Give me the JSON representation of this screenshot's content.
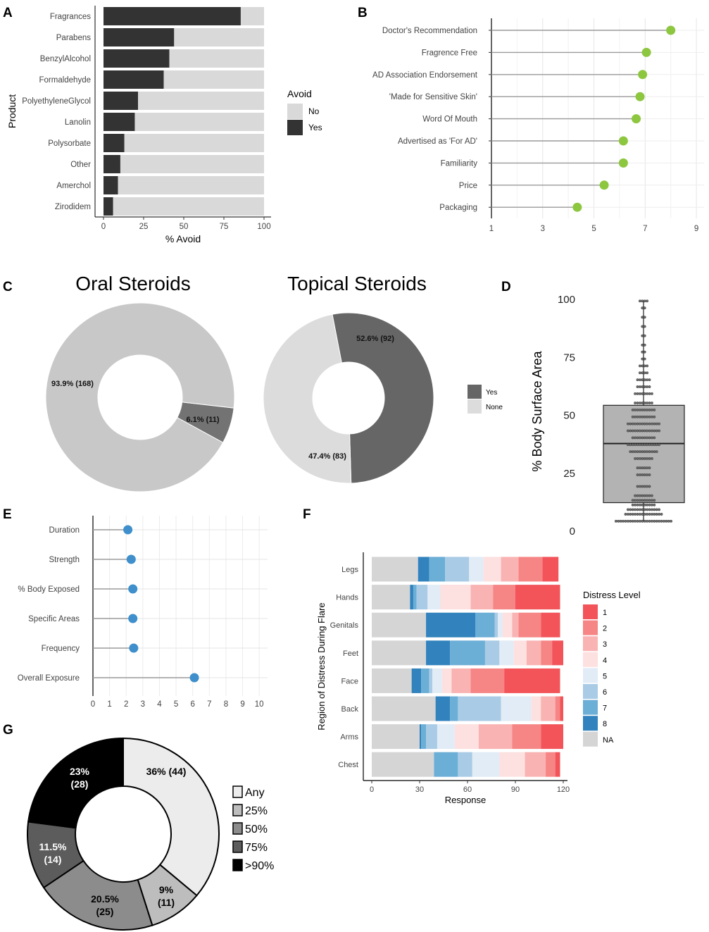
{
  "panel_letters": [
    "A",
    "B",
    "C",
    "D",
    "E",
    "F",
    "G"
  ],
  "chart_data": [
    {
      "panel": "A",
      "type": "bar",
      "orientation": "horizontal",
      "stacked": true,
      "categories": [
        "Fragrances",
        "Parabens",
        "BenzylAlcohol",
        "Formaldehyde",
        "PolyethyleneGlycol",
        "Lanolin",
        "Polysorbate",
        "Other",
        "Amerchol",
        "Zirodidem"
      ],
      "series": [
        {
          "name": "Yes",
          "values": [
            85.5,
            44,
            41,
            37.5,
            21.5,
            19.5,
            13,
            10.5,
            9,
            6
          ],
          "color": "#333333"
        },
        {
          "name": "No",
          "values": [
            14.5,
            56,
            59,
            62.5,
            78.5,
            80.5,
            87,
            89.5,
            91,
            94
          ],
          "color": "#d9d9d9"
        }
      ],
      "xlabel": "% Avoid",
      "ylabel": "Product",
      "xlim": [
        0,
        100
      ],
      "xticks": [
        "0",
        "25",
        "50",
        "75",
        "100"
      ],
      "legend": {
        "title": "Avoid",
        "entries": [
          "No",
          "Yes"
        ],
        "position": "right"
      }
    },
    {
      "panel": "B",
      "type": "lollipop",
      "categories": [
        "Doctor's Recommendation",
        "Fragrence Free",
        "AD Association Endorsement",
        "'Made for Sensitive Skin'",
        "Word Of Mouth",
        "Advertised as 'For AD'",
        "Familiarity",
        "Price",
        "Packaging"
      ],
      "values": [
        8.0,
        7.05,
        6.9,
        6.8,
        6.65,
        6.15,
        6.15,
        5.4,
        4.35
      ],
      "xlim": [
        1,
        9.3
      ],
      "xticks": [
        "1",
        "3",
        "5",
        "7",
        "9"
      ],
      "color": "#8dc63f"
    },
    {
      "panel": "C1",
      "type": "pie",
      "donut": true,
      "title": "Oral Steroids",
      "slices": [
        {
          "name": "Yes",
          "value": 11,
          "label": "6.1% (11)",
          "color": "#737373"
        },
        {
          "name": "None",
          "value": 168,
          "label": "93.9% (168)",
          "color": "#c8c8c8"
        }
      ]
    },
    {
      "panel": "C2",
      "type": "pie",
      "donut": true,
      "title": "Topical Steroids",
      "slices": [
        {
          "name": "Yes",
          "value": 92,
          "label": "52.6% (92)",
          "color": "#666666"
        },
        {
          "name": "None",
          "value": 83,
          "label": "47.4% (83)",
          "color": "#dcdcdc"
        }
      ],
      "legend": {
        "entries": [
          "Yes",
          "None"
        ],
        "colors": [
          "#666666",
          "#dcdcdc"
        ],
        "position": "right"
      }
    },
    {
      "panel": "D",
      "type": "scatter",
      "subtype": "boxplot-with-dots",
      "ylabel": "% Body Surface Area",
      "ylim": [
        0,
        100
      ],
      "yticks": [
        "100",
        "75",
        "50",
        "25",
        "0"
      ],
      "box": {
        "q1": 12,
        "median": 37.5,
        "q3": 54,
        "min": 4,
        "max": 99
      },
      "dot_rows": [
        {
          "y": 99,
          "n": 4
        },
        {
          "y": 96,
          "n": 2
        },
        {
          "y": 92,
          "n": 2
        },
        {
          "y": 88,
          "n": 2
        },
        {
          "y": 84,
          "n": 2
        },
        {
          "y": 80,
          "n": 2
        },
        {
          "y": 77,
          "n": 2
        },
        {
          "y": 74,
          "n": 2
        },
        {
          "y": 71,
          "n": 4
        },
        {
          "y": 68,
          "n": 4
        },
        {
          "y": 65,
          "n": 6
        },
        {
          "y": 62,
          "n": 6
        },
        {
          "y": 59,
          "n": 8
        },
        {
          "y": 55,
          "n": 8
        },
        {
          "y": 52,
          "n": 10
        },
        {
          "y": 49,
          "n": 10
        },
        {
          "y": 46,
          "n": 14
        },
        {
          "y": 43,
          "n": 14
        },
        {
          "y": 40,
          "n": 10
        },
        {
          "y": 37,
          "n": 14
        },
        {
          "y": 34,
          "n": 12
        },
        {
          "y": 31,
          "n": 8
        },
        {
          "y": 27,
          "n": 6
        },
        {
          "y": 24,
          "n": 6
        },
        {
          "y": 19,
          "n": 6
        },
        {
          "y": 15,
          "n": 8
        },
        {
          "y": 13,
          "n": 10
        },
        {
          "y": 11,
          "n": 10
        },
        {
          "y": 9,
          "n": 14
        },
        {
          "y": 7,
          "n": 16
        },
        {
          "y": 4,
          "n": 24
        }
      ]
    },
    {
      "panel": "E",
      "type": "lollipop",
      "categories": [
        "Duration",
        "Strength",
        "% Body Exposed",
        "Specific Areas",
        "Frequency",
        "Overall Exposure"
      ],
      "values": [
        2.1,
        2.3,
        2.4,
        2.4,
        2.45,
        6.1
      ],
      "xlim": [
        0,
        10.5
      ],
      "xticks": [
        "0",
        "1",
        "2",
        "3",
        "4",
        "5",
        "6",
        "7",
        "8",
        "9",
        "10"
      ],
      "color": "#3e8fcb"
    },
    {
      "panel": "F",
      "type": "bar",
      "orientation": "horizontal",
      "stacked": true,
      "categories": [
        "Legs",
        "Hands",
        "Genitals",
        "Feet",
        "Face",
        "Back",
        "Arms",
        "Chest"
      ],
      "series": [
        {
          "name": "NA",
          "values": [
            29,
            24,
            34,
            34,
            25,
            40,
            30,
            39
          ],
          "color": "#d5d5d5"
        },
        {
          "name": "8",
          "values": [
            7,
            2,
            31,
            15,
            6,
            9,
            1,
            0
          ],
          "color": "#3182bd"
        },
        {
          "name": "7",
          "values": [
            10,
            2,
            12,
            22,
            5,
            5,
            3,
            15
          ],
          "color": "#6baed6"
        },
        {
          "name": "6",
          "values": [
            15,
            7,
            2,
            9,
            2,
            27,
            7,
            9
          ],
          "color": "#a9cbe5"
        },
        {
          "name": "5",
          "values": [
            9,
            8,
            3,
            9,
            6,
            19,
            11,
            17
          ],
          "color": "#e1ecf6"
        },
        {
          "name": "4",
          "values": [
            11,
            19,
            6,
            8,
            6,
            6,
            15,
            16
          ],
          "color": "#fde0e0"
        },
        {
          "name": "3",
          "values": [
            11,
            14,
            4,
            9,
            12,
            9,
            21,
            13
          ],
          "color": "#f9b3b3"
        },
        {
          "name": "2",
          "values": [
            15,
            14,
            14,
            7,
            21,
            3,
            18,
            6
          ],
          "color": "#f68585"
        },
        {
          "name": "1",
          "values": [
            10,
            28,
            12,
            7,
            35,
            2,
            14,
            3
          ],
          "color": "#f2545a"
        }
      ],
      "xlabel": "Response",
      "ylabel": "Region of Distress During Flare",
      "xlim": [
        0,
        122
      ],
      "xticks": [
        "0",
        "30",
        "60",
        "90",
        "120"
      ],
      "legend": {
        "title": "Distress Level",
        "entries": [
          "1",
          "2",
          "3",
          "4",
          "5",
          "6",
          "7",
          "8",
          "NA"
        ],
        "position": "right"
      }
    },
    {
      "panel": "G",
      "type": "pie",
      "donut": true,
      "slices": [
        {
          "name": "Any",
          "value": 44,
          "label_pct": "36% (44)",
          "color": "#ececec",
          "text_color": "#000000"
        },
        {
          "name": "25%",
          "value": 11,
          "label_pct": "9%",
          "label_n": "(11)",
          "color": "#bdbdbd",
          "text_color": "#000000"
        },
        {
          "name": "50%",
          "value": 25,
          "label_pct": "20.5%",
          "label_n": "(25)",
          "color": "#8c8c8c",
          "text_color": "#000000"
        },
        {
          "name": "75%",
          "value": 14,
          "label_pct": "11.5%",
          "label_n": "(14)",
          "color": "#5c5c5c",
          "text_color": "#ffffff"
        },
        {
          "name": ">90%",
          "value": 28,
          "label_pct": "23%",
          "label_n": "(28)",
          "color": "#000000",
          "text_color": "#ffffff"
        }
      ],
      "legend": {
        "entries": [
          "Any",
          "25%",
          "50%",
          "75%",
          ">90%"
        ],
        "position": "right"
      }
    }
  ]
}
